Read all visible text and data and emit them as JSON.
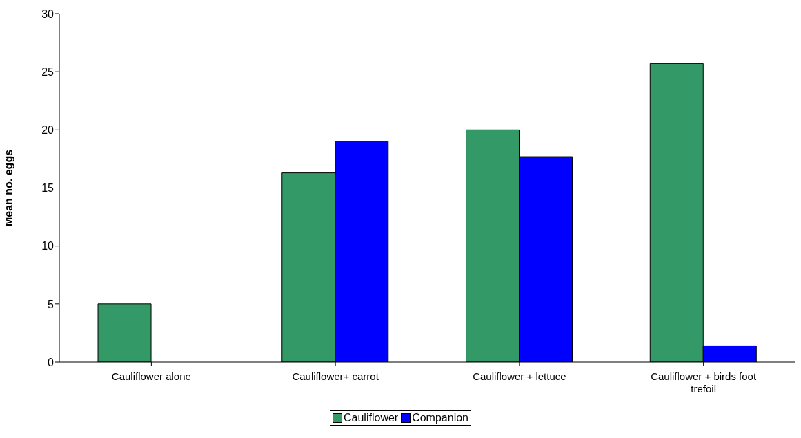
{
  "chart_data": {
    "type": "bar",
    "ylabel": "Mean no. eggs",
    "categories": [
      "Cauliflower alone",
      "Cauliflower+ carrot",
      "Cauliflower + lettuce",
      "Cauliflower + birds foot trefoil"
    ],
    "series": [
      {
        "name": "Cauliflower",
        "color": "#339966",
        "values": [
          5,
          16.3,
          20,
          25.7
        ]
      },
      {
        "name": "Companion",
        "color": "#0000ff",
        "values": [
          0,
          19,
          17.7,
          1.4
        ]
      }
    ],
    "ylim": [
      0,
      30
    ],
    "yticks": [
      0,
      5,
      10,
      15,
      20,
      25,
      30
    ],
    "legend": "bottom"
  }
}
